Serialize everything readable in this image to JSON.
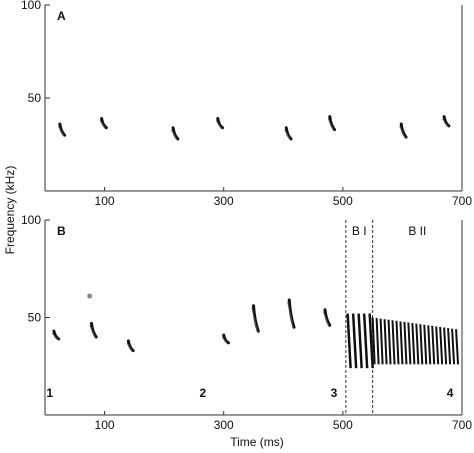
{
  "chart_data": [
    {
      "type": "scatter",
      "panel_label": "A",
      "xlim": [
        0,
        700
      ],
      "ylim": [
        0,
        100
      ],
      "x_ticks": [
        100,
        300,
        500,
        700
      ],
      "y_ticks": [
        100,
        50
      ],
      "calls": [
        {
          "t": 25,
          "f_high": 36,
          "f_low": 30
        },
        {
          "t": 95,
          "f_high": 39,
          "f_low": 34
        },
        {
          "t": 215,
          "f_high": 34,
          "f_low": 28
        },
        {
          "t": 290,
          "f_high": 39,
          "f_low": 34
        },
        {
          "t": 405,
          "f_high": 34,
          "f_low": 28
        },
        {
          "t": 478,
          "f_high": 40,
          "f_low": 33
        },
        {
          "t": 598,
          "f_high": 36,
          "f_low": 29
        },
        {
          "t": 670,
          "f_high": 40,
          "f_low": 35
        }
      ]
    },
    {
      "type": "scatter",
      "panel_label": "B",
      "xlim": [
        0,
        700
      ],
      "ylim": [
        0,
        100
      ],
      "x_ticks": [
        100,
        300,
        500,
        700
      ],
      "y_ticks": [
        100,
        50
      ],
      "ylabel": "Frequency (kHz)",
      "xlabel": "Time (ms)",
      "calls": [
        {
          "t": 15,
          "f_high": 43,
          "f_low": 39
        },
        {
          "t": 78,
          "f_high": 47,
          "f_low": 40
        },
        {
          "t": 140,
          "f_high": 38,
          "f_low": 33
        },
        {
          "t": 300,
          "f_high": 41,
          "f_low": 37
        },
        {
          "t": 350,
          "f_high": 56,
          "f_low": 43
        },
        {
          "t": 410,
          "f_high": 59,
          "f_low": 45
        },
        {
          "t": 470,
          "f_high": 54,
          "f_low": 46
        }
      ],
      "dot": {
        "t": 75,
        "f": 61
      },
      "segment_boundaries": [
        505,
        550
      ],
      "segment_labels": [
        "B I",
        "B II"
      ],
      "phase_numbers": [
        {
          "label": "1",
          "t": 8
        },
        {
          "label": "2",
          "t": 265
        },
        {
          "label": "3",
          "t": 485
        },
        {
          "label": "4",
          "t": 680
        }
      ],
      "burst_BI": {
        "start": 508,
        "end": 545,
        "count": 5,
        "f_high": 52,
        "f_low": 24
      },
      "burst_BII": {
        "start": 550,
        "end": 690,
        "count": 22,
        "f_high_start": 50,
        "f_high_end": 44,
        "f_low": 26
      }
    }
  ]
}
